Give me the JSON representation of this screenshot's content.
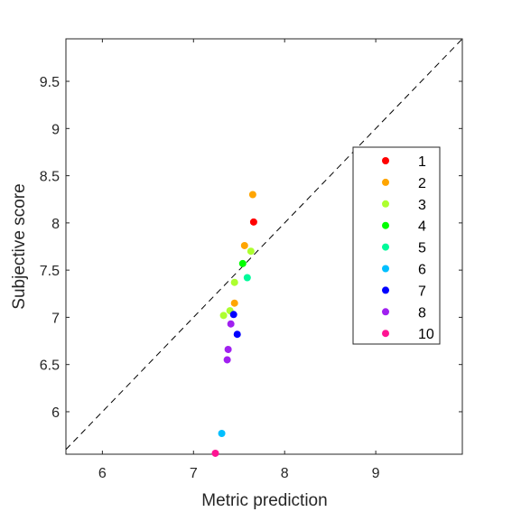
{
  "chart_data": {
    "type": "scatter",
    "xlabel": "Metric prediction",
    "ylabel": "Subjective score",
    "xlim": [
      5.6,
      9.95
    ],
    "ylim": [
      5.55,
      9.95
    ],
    "xticks": [
      "6",
      "7",
      "8",
      "9"
    ],
    "yticks": [
      "6",
      "6.5",
      "7",
      "7.5",
      "8",
      "8.5",
      "9",
      "9.5"
    ],
    "grid": false,
    "reference_line": "dashed diagonal y = x",
    "legend_position": "right",
    "series": [
      {
        "name": "1",
        "color": "#ff0000",
        "points": [
          [
            7.66,
            8.01
          ]
        ]
      },
      {
        "name": "2",
        "color": "#ffa500",
        "points": [
          [
            7.65,
            8.3
          ],
          [
            7.56,
            7.76
          ],
          [
            7.45,
            7.15
          ]
        ]
      },
      {
        "name": "3",
        "color": "#adff2f",
        "points": [
          [
            7.63,
            7.7
          ],
          [
            7.45,
            7.37
          ],
          [
            7.4,
            7.07
          ],
          [
            7.33,
            7.02
          ]
        ]
      },
      {
        "name": "4",
        "color": "#00ff00",
        "points": [
          [
            7.54,
            7.57
          ]
        ]
      },
      {
        "name": "5",
        "color": "#00fa9a",
        "points": [
          [
            7.59,
            7.42
          ]
        ]
      },
      {
        "name": "6",
        "color": "#00bfff",
        "points": [
          [
            7.31,
            5.77
          ]
        ]
      },
      {
        "name": "7",
        "color": "#0000ff",
        "points": [
          [
            7.44,
            7.03
          ],
          [
            7.48,
            6.82
          ]
        ]
      },
      {
        "name": "8",
        "color": "#a020f0",
        "points": [
          [
            7.41,
            6.93
          ],
          [
            7.38,
            6.66
          ],
          [
            7.37,
            6.55
          ]
        ]
      },
      {
        "name": "10",
        "color": "#ff1493",
        "points": [
          [
            7.24,
            5.56
          ]
        ]
      }
    ]
  }
}
